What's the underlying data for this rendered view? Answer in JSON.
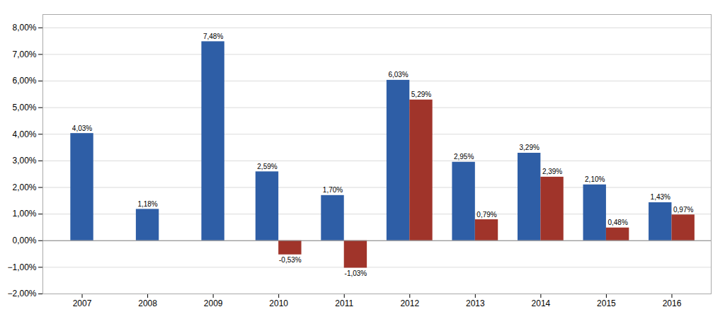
{
  "chart_data": {
    "type": "bar",
    "categories": [
      "2007",
      "2008",
      "2009",
      "2010",
      "2011",
      "2012",
      "2013",
      "2014",
      "2015",
      "2016"
    ],
    "series": [
      {
        "color": "#2E5EA6",
        "values": [
          4.03,
          1.18,
          7.48,
          2.59,
          1.7,
          6.03,
          2.95,
          3.29,
          2.1,
          1.43
        ],
        "value_labels": [
          "4,03%",
          "1,18%",
          "7,48%",
          "2,59%",
          "1,70%",
          "6,03%",
          "2,95%",
          "3,29%",
          "2,10%",
          "1,43%"
        ]
      },
      {
        "color": "#A0342A",
        "values": [
          null,
          null,
          null,
          -0.53,
          -1.03,
          5.29,
          0.79,
          2.39,
          0.48,
          0.97
        ],
        "value_labels": [
          null,
          null,
          null,
          "-0,53%",
          "-1,03%",
          "5,29%",
          "0,79%",
          "2,39%",
          "0,48%",
          "0,97%"
        ]
      }
    ],
    "ylim": [
      -2.0,
      8.5
    ],
    "yticks": [
      {
        "value": -2.0,
        "label": "−2,00%"
      },
      {
        "value": -1.0,
        "label": "−1,00%"
      },
      {
        "value": 0.0,
        "label": "0,00%"
      },
      {
        "value": 1.0,
        "label": "1,00%"
      },
      {
        "value": 2.0,
        "label": "2,00%"
      },
      {
        "value": 3.0,
        "label": "3,00%"
      },
      {
        "value": 4.0,
        "label": "4,00%"
      },
      {
        "value": 5.0,
        "label": "5,00%"
      },
      {
        "value": 6.0,
        "label": "6,00%"
      },
      {
        "value": 7.0,
        "label": "7,00%"
      },
      {
        "value": 8.0,
        "label": "8,00%"
      }
    ],
    "grid": true,
    "data_labels": true
  }
}
